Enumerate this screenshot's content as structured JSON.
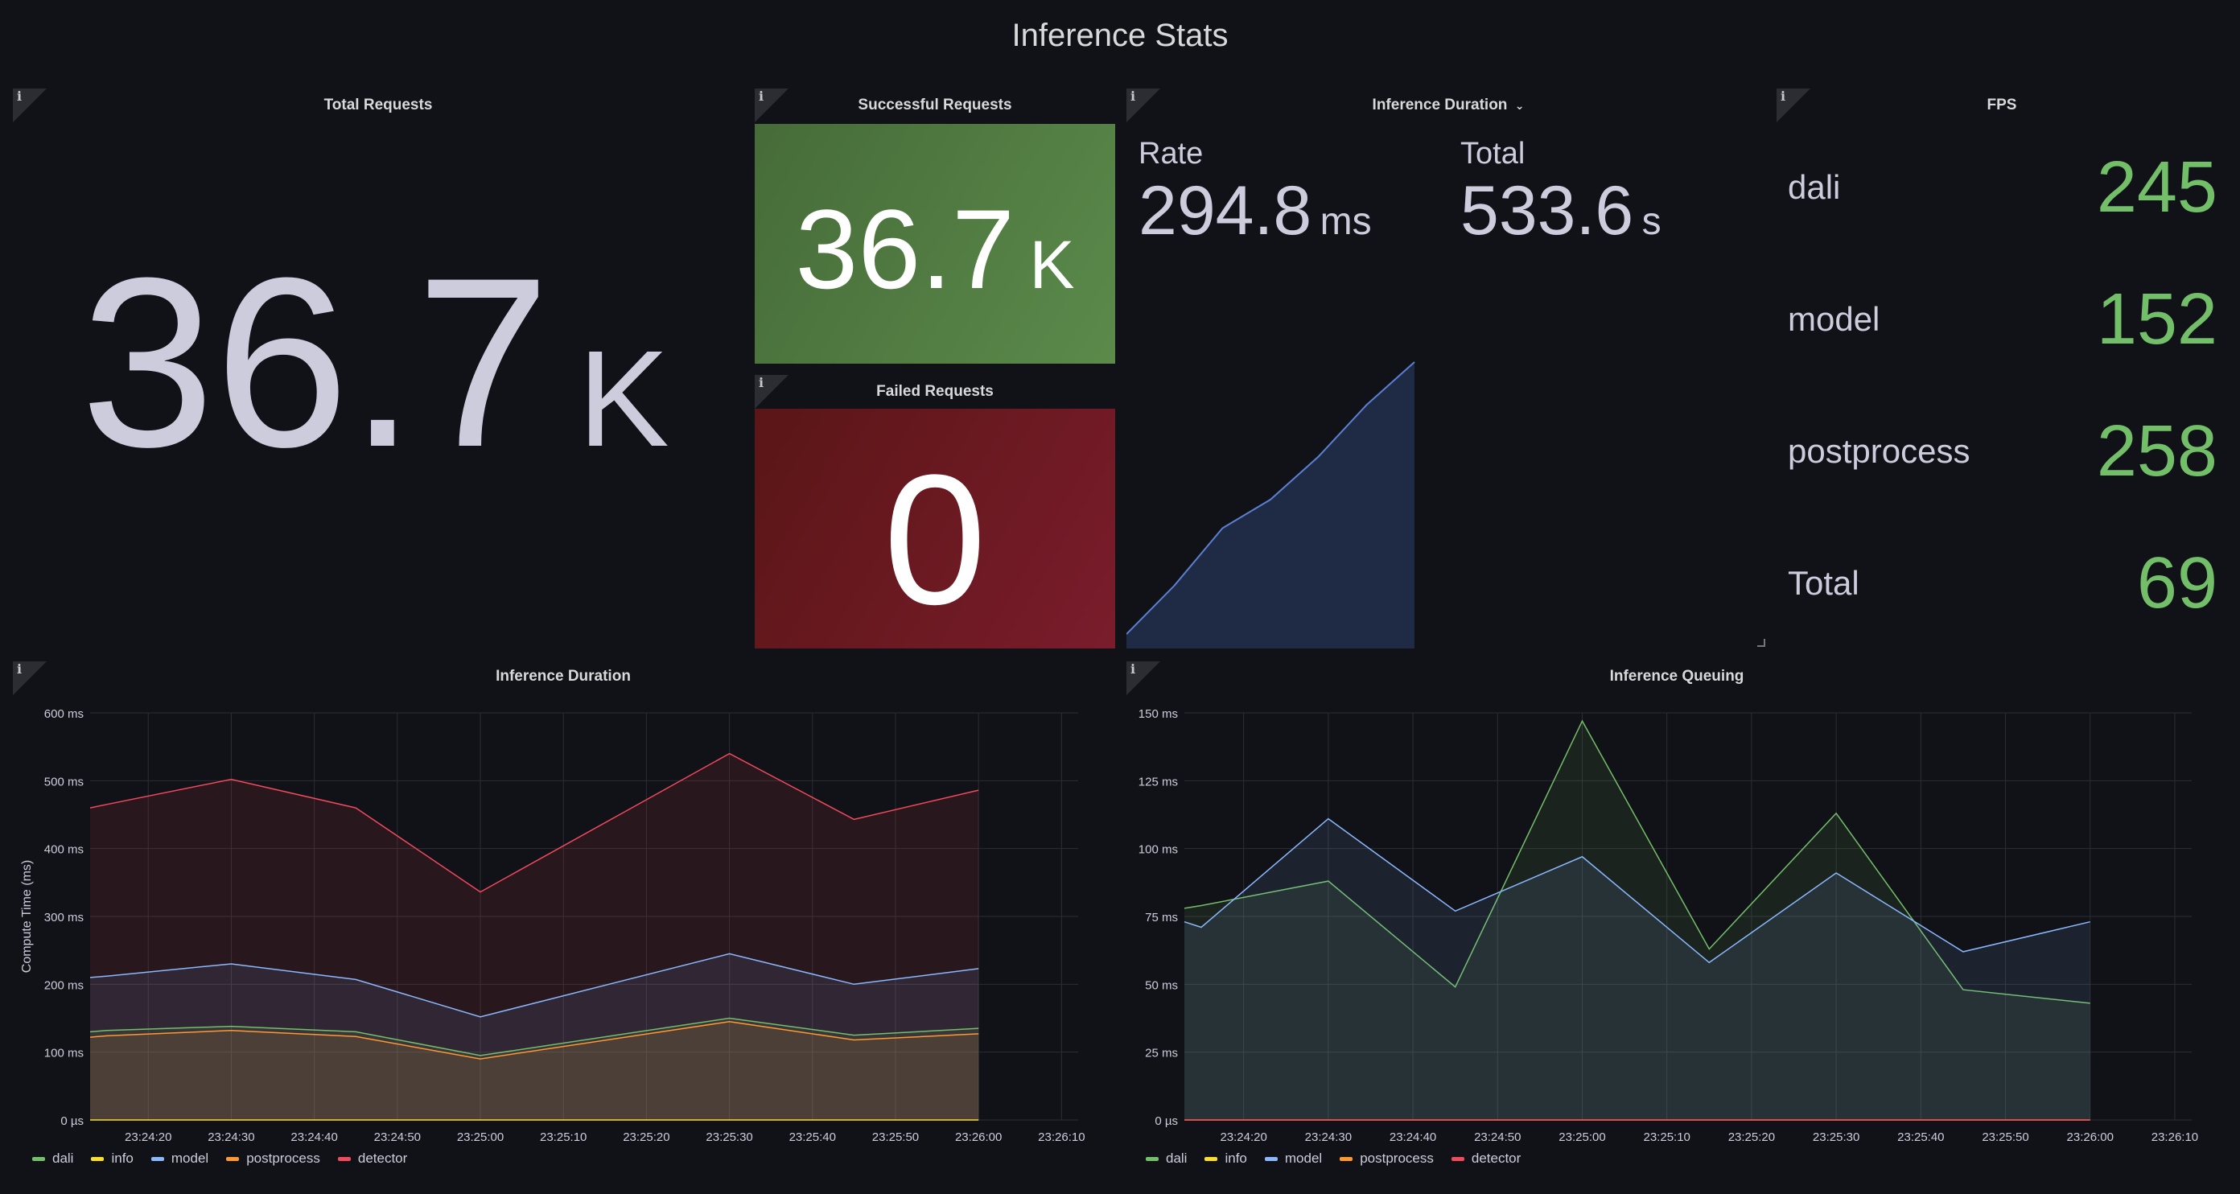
{
  "page": {
    "title": "Inference Stats"
  },
  "panels": {
    "total_requests": {
      "title": "Total Requests",
      "value": "36.7",
      "unit": "K"
    },
    "successful_requests": {
      "title": "Successful Requests",
      "value": "36.7",
      "unit": "K",
      "color": "#56874a"
    },
    "failed_requests": {
      "title": "Failed Requests",
      "value": "0",
      "color": "#6e1a22"
    },
    "inference_duration_stat": {
      "title": "Inference Duration",
      "rate_label": "Rate",
      "rate_value": "294.8",
      "rate_unit": "ms",
      "total_label": "Total",
      "total_value": "533.6",
      "total_unit": "s",
      "sparkline": [
        0.05,
        0.22,
        0.42,
        0.52,
        0.67,
        0.85,
        1.0
      ]
    },
    "fps": {
      "title": "FPS",
      "rows": [
        {
          "label": "dali",
          "value": "245"
        },
        {
          "label": "model",
          "value": "152"
        },
        {
          "label": "postprocess",
          "value": "258"
        },
        {
          "label": "Total",
          "value": "69"
        }
      ],
      "value_color": "#73bf69"
    },
    "info_icon": "info-icon"
  },
  "legend": [
    {
      "name": "dali",
      "color": "#73bf69"
    },
    {
      "name": "info",
      "color": "#fade2a"
    },
    {
      "name": "model",
      "color": "#8ab8ff"
    },
    {
      "name": "postprocess",
      "color": "#ff9830"
    },
    {
      "name": "detector",
      "color": "#f2495c"
    }
  ],
  "chart_data": [
    {
      "type": "area",
      "title": "Inference Duration",
      "ylabel": "Compute Time (ms)",
      "yticks": [
        "0 µs",
        "100 ms",
        "200 ms",
        "300 ms",
        "400 ms",
        "500 ms",
        "600 ms"
      ],
      "ylim": [
        0,
        600
      ],
      "xticks": [
        "23:24:20",
        "23:24:30",
        "23:24:40",
        "23:24:50",
        "23:25:00",
        "23:25:10",
        "23:25:20",
        "23:25:30",
        "23:25:40",
        "23:25:50",
        "23:26:00",
        "23:26:10"
      ],
      "x": [
        "23:24:13",
        "23:24:15",
        "23:24:30",
        "23:24:45",
        "23:25:00",
        "23:25:30",
        "23:25:45",
        "23:26:00"
      ],
      "series": [
        {
          "name": "detector",
          "color": "#f2495c",
          "values": [
            460,
            465,
            502,
            460,
            336,
            540,
            443,
            486
          ]
        },
        {
          "name": "model",
          "color": "#8ab8ff",
          "values": [
            210,
            212,
            230,
            207,
            152,
            245,
            200,
            223
          ]
        },
        {
          "name": "dali",
          "color": "#73bf69",
          "values": [
            130,
            132,
            138,
            130,
            95,
            150,
            125,
            135
          ]
        },
        {
          "name": "postprocess",
          "color": "#ff9830",
          "values": [
            122,
            124,
            132,
            123,
            90,
            145,
            118,
            127
          ]
        },
        {
          "name": "info",
          "color": "#fade2a",
          "values": [
            0,
            0,
            0,
            0,
            0,
            0,
            0,
            0
          ]
        }
      ],
      "legend": "bottom-left",
      "grid": true
    },
    {
      "type": "area",
      "title": "Inference Queuing",
      "yticks": [
        "0 µs",
        "25 ms",
        "50 ms",
        "75 ms",
        "100 ms",
        "125 ms",
        "150 ms"
      ],
      "ylim": [
        0,
        150
      ],
      "xticks": [
        "23:24:20",
        "23:24:30",
        "23:24:40",
        "23:24:50",
        "23:25:00",
        "23:25:10",
        "23:25:20",
        "23:25:30",
        "23:25:40",
        "23:25:50",
        "23:26:00",
        "23:26:10"
      ],
      "series": [
        {
          "name": "dali",
          "color": "#73bf69",
          "x": [
            "23:24:13",
            "23:24:15",
            "23:24:30",
            "23:24:45",
            "23:25:00",
            "23:25:15",
            "23:25:30",
            "23:25:45",
            "23:26:00"
          ],
          "values": [
            78,
            79,
            88,
            49,
            147,
            63,
            113,
            48,
            43
          ]
        },
        {
          "name": "model",
          "color": "#8ab8ff",
          "x": [
            "23:24:13",
            "23:24:15",
            "23:24:30",
            "23:24:45",
            "23:25:00",
            "23:25:15",
            "23:25:30",
            "23:25:45",
            "23:26:00"
          ],
          "values": [
            73,
            71,
            111,
            77,
            97,
            58,
            91,
            62,
            73
          ]
        },
        {
          "name": "postprocess",
          "color": "#ff9830",
          "x": [
            "23:24:13",
            "23:26:00"
          ],
          "values": [
            0,
            0
          ]
        },
        {
          "name": "detector",
          "color": "#f2495c",
          "x": [
            "23:24:13",
            "23:26:00"
          ],
          "values": [
            0,
            0
          ]
        }
      ],
      "legend": "bottom-left",
      "grid": true
    }
  ]
}
